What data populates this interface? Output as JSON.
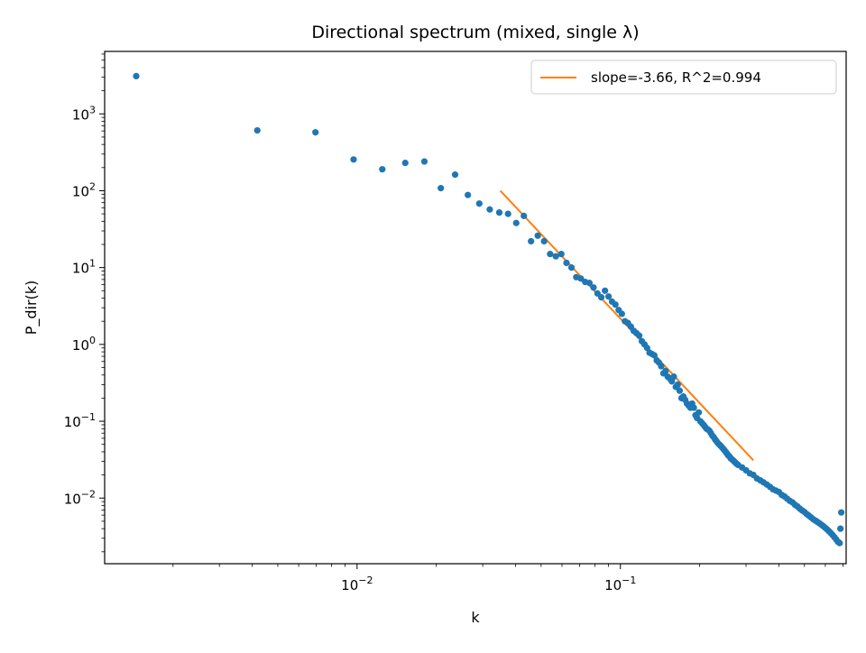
{
  "chart_data": {
    "type": "scatter",
    "title": "Directional spectrum (mixed, single λ)",
    "xlabel": "k",
    "ylabel": "P_dir(k)",
    "xscale": "log",
    "yscale": "log",
    "xlim": [
      0.0011,
      0.72
    ],
    "ylim": [
      0.0014,
      6500
    ],
    "grid": false,
    "legend_position": "top-right",
    "colors": {
      "points": "#1f77b4",
      "fit": "#ff7f0e"
    },
    "x_ticks": [
      {
        "base": "10",
        "exp": "−2",
        "value": 0.01
      },
      {
        "base": "10",
        "exp": "−1",
        "value": 0.1
      }
    ],
    "y_ticks": [
      {
        "base": "10",
        "exp": "−2",
        "value": 0.01
      },
      {
        "base": "10",
        "exp": "−1",
        "value": 0.1
      },
      {
        "base": "10",
        "exp": "0",
        "value": 1
      },
      {
        "base": "10",
        "exp": "1",
        "value": 10
      },
      {
        "base": "10",
        "exp": "2",
        "value": 100
      },
      {
        "base": "10",
        "exp": "3",
        "value": 1000
      }
    ],
    "series": [
      {
        "type": "scatter",
        "points": [
          [
            0.00145,
            3100
          ],
          [
            0.00418,
            610
          ],
          [
            0.00695,
            575
          ],
          [
            0.0097,
            255
          ],
          [
            0.01247,
            190
          ],
          [
            0.01524,
            230
          ],
          [
            0.01802,
            240
          ],
          [
            0.0208,
            108
          ],
          [
            0.02357,
            162
          ],
          [
            0.02635,
            88
          ],
          [
            0.02912,
            68
          ],
          [
            0.0319,
            57
          ],
          [
            0.03468,
            52
          ],
          [
            0.03745,
            50
          ],
          [
            0.04022,
            38
          ],
          [
            0.043,
            47
          ],
          [
            0.04577,
            22
          ],
          [
            0.04855,
            26
          ],
          [
            0.05132,
            22
          ],
          [
            0.0541,
            15
          ],
          [
            0.05687,
            14
          ],
          [
            0.05965,
            15
          ],
          [
            0.06242,
            11.5
          ],
          [
            0.0652,
            10
          ],
          [
            0.06797,
            7.5
          ],
          [
            0.07075,
            7.2
          ],
          [
            0.07352,
            6.5
          ],
          [
            0.0763,
            6.3
          ],
          [
            0.07907,
            5.5
          ],
          [
            0.08185,
            4.6
          ],
          [
            0.08462,
            4.1
          ],
          [
            0.0874,
            5.0
          ],
          [
            0.09017,
            4.2
          ],
          [
            0.09295,
            3.6
          ],
          [
            0.09572,
            3.3
          ],
          [
            0.0985,
            2.8
          ],
          [
            0.10127,
            2.5
          ],
          [
            0.10405,
            2.0
          ],
          [
            0.10682,
            1.9
          ],
          [
            0.1096,
            1.7
          ],
          [
            0.11237,
            1.5
          ],
          [
            0.11515,
            1.4
          ],
          [
            0.11792,
            1.3
          ],
          [
            0.1207,
            1.1
          ],
          [
            0.12347,
            1.0
          ],
          [
            0.12625,
            0.9
          ],
          [
            0.12902,
            0.78
          ],
          [
            0.1318,
            0.75
          ],
          [
            0.13457,
            0.72
          ],
          [
            0.13735,
            0.62
          ],
          [
            0.14012,
            0.58
          ],
          [
            0.1429,
            0.52
          ],
          [
            0.14567,
            0.42
          ],
          [
            0.14845,
            0.45
          ],
          [
            0.15122,
            0.38
          ],
          [
            0.154,
            0.36
          ],
          [
            0.15677,
            0.33
          ],
          [
            0.15955,
            0.38
          ],
          [
            0.16232,
            0.28
          ],
          [
            0.1651,
            0.3
          ],
          [
            0.16787,
            0.25
          ],
          [
            0.17065,
            0.2
          ],
          [
            0.17342,
            0.21
          ],
          [
            0.1762,
            0.19
          ],
          [
            0.17897,
            0.17
          ],
          [
            0.18175,
            0.16
          ],
          [
            0.18452,
            0.15
          ],
          [
            0.1873,
            0.17
          ],
          [
            0.19007,
            0.15
          ],
          [
            0.19285,
            0.12
          ],
          [
            0.19562,
            0.11
          ],
          [
            0.1984,
            0.13
          ],
          [
            0.20117,
            0.1
          ],
          [
            0.20395,
            0.095
          ],
          [
            0.20672,
            0.09
          ],
          [
            0.2095,
            0.085
          ],
          [
            0.21227,
            0.08
          ],
          [
            0.21505,
            0.078
          ],
          [
            0.21782,
            0.075
          ],
          [
            0.2206,
            0.07
          ],
          [
            0.22337,
            0.065
          ],
          [
            0.22615,
            0.062
          ],
          [
            0.22892,
            0.058
          ],
          [
            0.2317,
            0.055
          ],
          [
            0.23447,
            0.052
          ],
          [
            0.23725,
            0.05
          ],
          [
            0.24002,
            0.048
          ],
          [
            0.2428,
            0.046
          ],
          [
            0.24557,
            0.044
          ],
          [
            0.24835,
            0.042
          ],
          [
            0.25112,
            0.04
          ],
          [
            0.2539,
            0.038
          ],
          [
            0.25667,
            0.036
          ],
          [
            0.25945,
            0.035
          ],
          [
            0.26222,
            0.033
          ],
          [
            0.265,
            0.032
          ],
          [
            0.26777,
            0.031
          ],
          [
            0.27055,
            0.03
          ],
          [
            0.27332,
            0.029
          ],
          [
            0.2761,
            0.028
          ],
          [
            0.28,
            0.027
          ],
          [
            0.29,
            0.025
          ],
          [
            0.3,
            0.023
          ],
          [
            0.31,
            0.021
          ],
          [
            0.32,
            0.02
          ],
          [
            0.33,
            0.018
          ],
          [
            0.34,
            0.017
          ],
          [
            0.35,
            0.016
          ],
          [
            0.36,
            0.015
          ],
          [
            0.37,
            0.014
          ],
          [
            0.38,
            0.013
          ],
          [
            0.39,
            0.0125
          ],
          [
            0.4,
            0.012
          ],
          [
            0.41,
            0.011
          ],
          [
            0.42,
            0.0105
          ],
          [
            0.43,
            0.0098
          ],
          [
            0.44,
            0.0092
          ],
          [
            0.45,
            0.0088
          ],
          [
            0.46,
            0.0082
          ],
          [
            0.47,
            0.0078
          ],
          [
            0.48,
            0.0073
          ],
          [
            0.49,
            0.0069
          ],
          [
            0.5,
            0.0066
          ],
          [
            0.51,
            0.0062
          ],
          [
            0.52,
            0.0059
          ],
          [
            0.53,
            0.0056
          ],
          [
            0.54,
            0.0053
          ],
          [
            0.55,
            0.0051
          ],
          [
            0.56,
            0.0049
          ],
          [
            0.57,
            0.0047
          ],
          [
            0.58,
            0.0045
          ],
          [
            0.59,
            0.0043
          ],
          [
            0.6,
            0.0041
          ],
          [
            0.61,
            0.0039
          ],
          [
            0.62,
            0.0037
          ],
          [
            0.63,
            0.0035
          ],
          [
            0.64,
            0.0033
          ],
          [
            0.65,
            0.0031
          ],
          [
            0.66,
            0.0029
          ],
          [
            0.67,
            0.0027
          ],
          [
            0.68,
            0.0026
          ],
          [
            0.685,
            0.004
          ],
          [
            0.69,
            0.0065
          ]
        ]
      },
      {
        "type": "line",
        "name": "slope=-3.66, R^2=0.994",
        "points": [
          [
            0.035,
            100
          ],
          [
            0.32,
            0.031
          ]
        ]
      }
    ]
  }
}
